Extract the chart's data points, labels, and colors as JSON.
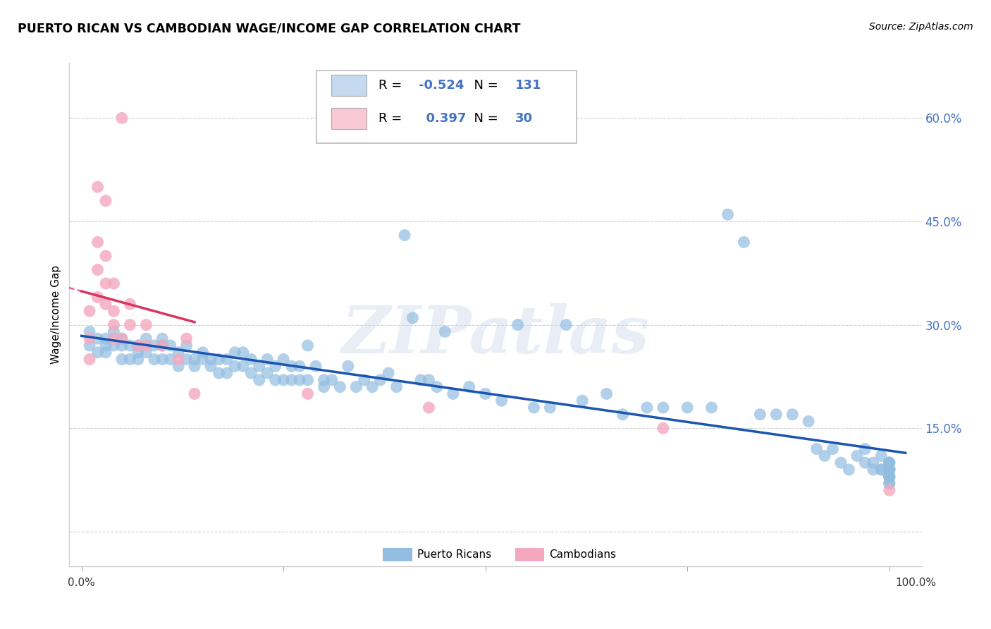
{
  "title": "PUERTO RICAN VS CAMBODIAN WAGE/INCOME GAP CORRELATION CHART",
  "source": "Source: ZipAtlas.com",
  "ylabel": "Wage/Income Gap",
  "r_puerto_rican": -0.524,
  "n_puerto_rican": 131,
  "r_cambodian": 0.397,
  "n_cambodian": 30,
  "blue_scatter_color": "#92bde0",
  "pink_scatter_color": "#f4a8bf",
  "blue_line_color": "#1a55b0",
  "pink_line_color": "#d9365e",
  "legend_blue_fill": "#c5d9ef",
  "legend_pink_fill": "#f8c8d4",
  "text_blue_color": "#4472c4",
  "watermark_color": "#d0dde f",
  "watermark_text": "ZIPatlas",
  "grid_color": "#d0d0d0",
  "ytick_color": "#4472c4",
  "y_ticks": [
    0.0,
    0.15,
    0.3,
    0.45,
    0.6
  ],
  "y_tick_labels": [
    "",
    "15.0%",
    "30.0%",
    "45.0%",
    "60.0%"
  ],
  "xlim": [
    -0.015,
    1.04
  ],
  "ylim": [
    -0.05,
    0.68
  ],
  "puerto_rican_x": [
    0.01,
    0.01,
    0.02,
    0.02,
    0.03,
    0.03,
    0.03,
    0.04,
    0.04,
    0.05,
    0.05,
    0.05,
    0.06,
    0.06,
    0.07,
    0.07,
    0.07,
    0.08,
    0.08,
    0.09,
    0.09,
    0.1,
    0.1,
    0.1,
    0.11,
    0.11,
    0.12,
    0.12,
    0.13,
    0.13,
    0.14,
    0.14,
    0.15,
    0.15,
    0.16,
    0.16,
    0.17,
    0.17,
    0.18,
    0.18,
    0.19,
    0.19,
    0.2,
    0.2,
    0.21,
    0.21,
    0.22,
    0.22,
    0.23,
    0.23,
    0.24,
    0.24,
    0.25,
    0.25,
    0.26,
    0.26,
    0.27,
    0.27,
    0.28,
    0.28,
    0.29,
    0.3,
    0.3,
    0.31,
    0.32,
    0.33,
    0.34,
    0.35,
    0.36,
    0.37,
    0.38,
    0.39,
    0.4,
    0.41,
    0.42,
    0.43,
    0.44,
    0.45,
    0.46,
    0.48,
    0.5,
    0.52,
    0.54,
    0.56,
    0.58,
    0.6,
    0.62,
    0.65,
    0.67,
    0.7,
    0.72,
    0.75,
    0.78,
    0.8,
    0.82,
    0.84,
    0.86,
    0.88,
    0.9,
    0.91,
    0.92,
    0.93,
    0.94,
    0.95,
    0.96,
    0.97,
    0.97,
    0.98,
    0.98,
    0.99,
    0.99,
    0.99,
    1.0,
    1.0,
    1.0,
    1.0,
    1.0,
    1.0,
    1.0,
    1.0,
    1.0,
    1.0,
    1.0,
    1.0,
    1.0,
    1.0,
    1.0,
    1.0,
    1.0,
    1.0,
    1.0
  ],
  "puerto_rican_y": [
    0.27,
    0.29,
    0.26,
    0.28,
    0.28,
    0.27,
    0.26,
    0.27,
    0.29,
    0.25,
    0.27,
    0.28,
    0.25,
    0.27,
    0.26,
    0.27,
    0.25,
    0.26,
    0.28,
    0.25,
    0.27,
    0.25,
    0.27,
    0.28,
    0.25,
    0.27,
    0.24,
    0.26,
    0.25,
    0.27,
    0.24,
    0.25,
    0.25,
    0.26,
    0.24,
    0.25,
    0.23,
    0.25,
    0.23,
    0.25,
    0.24,
    0.26,
    0.24,
    0.26,
    0.23,
    0.25,
    0.22,
    0.24,
    0.23,
    0.25,
    0.22,
    0.24,
    0.22,
    0.25,
    0.22,
    0.24,
    0.22,
    0.24,
    0.22,
    0.27,
    0.24,
    0.21,
    0.22,
    0.22,
    0.21,
    0.24,
    0.21,
    0.22,
    0.21,
    0.22,
    0.23,
    0.21,
    0.43,
    0.31,
    0.22,
    0.22,
    0.21,
    0.29,
    0.2,
    0.21,
    0.2,
    0.19,
    0.3,
    0.18,
    0.18,
    0.3,
    0.19,
    0.2,
    0.17,
    0.18,
    0.18,
    0.18,
    0.18,
    0.46,
    0.42,
    0.17,
    0.17,
    0.17,
    0.16,
    0.12,
    0.11,
    0.12,
    0.1,
    0.09,
    0.11,
    0.1,
    0.12,
    0.09,
    0.1,
    0.11,
    0.09,
    0.09,
    0.08,
    0.1,
    0.09,
    0.09,
    0.07,
    0.09,
    0.1,
    0.09,
    0.08,
    0.09,
    0.08,
    0.09,
    0.1,
    0.08,
    0.09,
    0.07,
    0.1,
    0.08,
    0.09
  ],
  "cambodian_x": [
    0.01,
    0.01,
    0.01,
    0.02,
    0.02,
    0.02,
    0.02,
    0.03,
    0.03,
    0.03,
    0.03,
    0.04,
    0.04,
    0.04,
    0.04,
    0.05,
    0.05,
    0.06,
    0.06,
    0.07,
    0.08,
    0.08,
    0.1,
    0.12,
    0.13,
    0.14,
    0.28,
    0.43,
    0.72,
    1.0
  ],
  "cambodian_y": [
    0.25,
    0.28,
    0.32,
    0.34,
    0.38,
    0.42,
    0.5,
    0.33,
    0.36,
    0.4,
    0.48,
    0.28,
    0.3,
    0.32,
    0.36,
    0.28,
    0.6,
    0.3,
    0.33,
    0.27,
    0.27,
    0.3,
    0.27,
    0.25,
    0.28,
    0.2,
    0.2,
    0.18,
    0.15,
    0.06
  ]
}
